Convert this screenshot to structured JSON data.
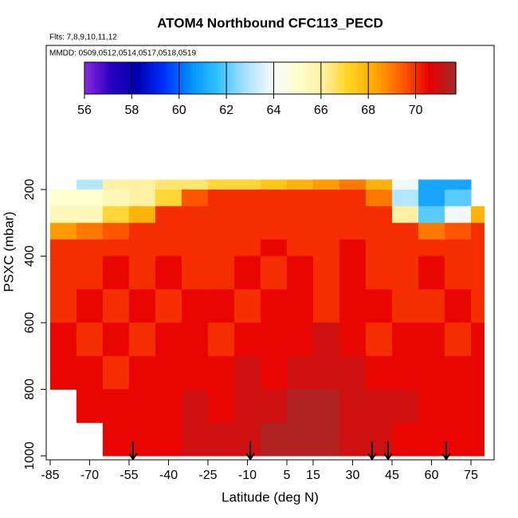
{
  "chart_data": {
    "type": "heatmap",
    "title": "ATOM4 Northbound CFC113_PECD",
    "subtitle": "Flts: 7,8,9,10,11,12",
    "annotation": "MMDD: 0509,0512,0514,0517,0518,0519",
    "x_label": "Latitude (deg N)",
    "y_label": "PSXC (mbar)",
    "xlim": [
      -86.5,
      83.8
    ],
    "xticks": [
      -85,
      -70,
      -55,
      -40,
      -25,
      -10,
      5,
      15,
      30,
      45,
      60,
      75
    ],
    "ylim": [
      -233,
      1012
    ],
    "yticks": [
      200,
      400,
      600,
      800,
      1000
    ],
    "x_bins": [
      -85,
      -75,
      -65,
      -55,
      -45,
      -35,
      -25,
      -15,
      -5,
      5,
      15,
      25,
      35,
      45,
      55,
      65,
      75,
      80
    ],
    "y_bins": [
      170,
      200,
      250,
      300,
      350,
      400,
      500,
      600,
      700,
      800,
      900,
      1000
    ],
    "values": [
      [
        null,
        63,
        66,
        66,
        66.5,
        66.5,
        67,
        67,
        67.5,
        68,
        68.5,
        69,
        68,
        64,
        61,
        61,
        null
      ],
      [
        65,
        65,
        65.5,
        66,
        67,
        69.5,
        70,
        70,
        70,
        70,
        70,
        70,
        69,
        63,
        61,
        62,
        null
      ],
      [
        65.5,
        65.5,
        67,
        68,
        70,
        70,
        70,
        70,
        70,
        70,
        70,
        70,
        70,
        66,
        62,
        64,
        68
      ],
      [
        68.5,
        69,
        69.5,
        70,
        70,
        70,
        70,
        70,
        70,
        70,
        70,
        70,
        70,
        70,
        69,
        69.5,
        70
      ],
      [
        70,
        70,
        70,
        70,
        70,
        70,
        70,
        70,
        70.5,
        70,
        70,
        70.5,
        70,
        70,
        70,
        70,
        70
      ],
      [
        70,
        70,
        70.5,
        70,
        70.5,
        70,
        70,
        70.5,
        70,
        70.5,
        70,
        70.5,
        70,
        70,
        70.5,
        70,
        70
      ],
      [
        70,
        70.5,
        70,
        70.5,
        70,
        70.5,
        70.5,
        70,
        70.5,
        70.5,
        70,
        70.5,
        70.5,
        70,
        70,
        70.5,
        70
      ],
      [
        70.5,
        70,
        70.5,
        70,
        70.5,
        70.5,
        70,
        70.5,
        70.5,
        70.5,
        71,
        70.5,
        70,
        70.5,
        70.5,
        70,
        70.5
      ],
      [
        70.5,
        70.5,
        70,
        70.5,
        70.5,
        70.5,
        70.5,
        71,
        70.5,
        71,
        71,
        71,
        70.5,
        70.5,
        70.5,
        70.5,
        70.5
      ],
      [
        null,
        70.5,
        70.5,
        70.5,
        70.5,
        71,
        70.5,
        71,
        71,
        71.5,
        71.5,
        71,
        71,
        71,
        70.5,
        70.5,
        70.5
      ],
      [
        null,
        null,
        70.5,
        70.5,
        70.5,
        71,
        71,
        71,
        71.5,
        71.5,
        71.5,
        71,
        71,
        70.5,
        70.5,
        70.5,
        70.5
      ]
    ],
    "clim": [
      56,
      71.7
    ],
    "colorbar_ticks": [
      56,
      58,
      60,
      62,
      64,
      66,
      68,
      70
    ],
    "colormap": [
      "#8a2be2",
      "#2a00c0",
      "#0000b0",
      "#0030ff",
      "#0090ff",
      "#30c0ff",
      "#a0e0ff",
      "#f0f8ff",
      "#ffffd0",
      "#fff0a0",
      "#ffd21e",
      "#ffa500",
      "#ff5a00",
      "#e80000",
      "#a52a2a"
    ],
    "arrow_lats": [
      -53.5,
      -8.9,
      37.4,
      43.5,
      65.6
    ]
  }
}
